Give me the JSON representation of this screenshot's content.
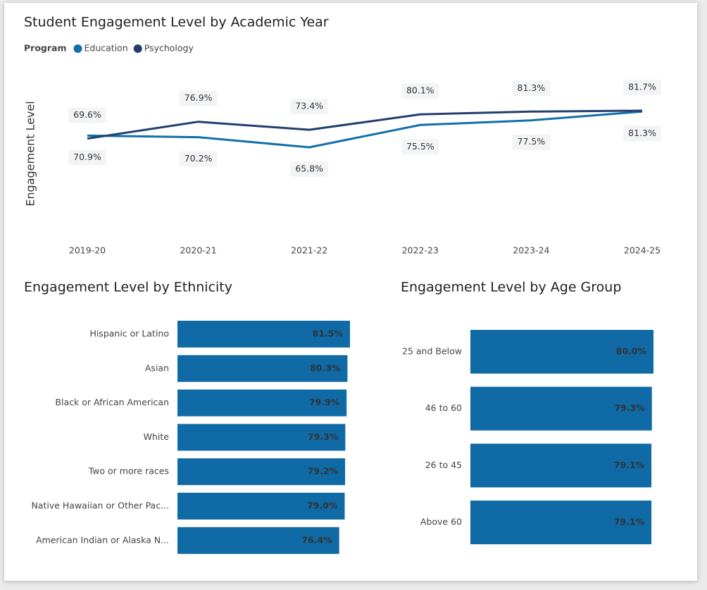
{
  "chart_data": [
    {
      "type": "line",
      "title": "Student Engagement Level by Academic Year",
      "legend_title": "Program",
      "y_label": "Engagement Level",
      "categories": [
        "2019-20",
        "2020-21",
        "2021-22",
        "2022-23",
        "2023-24",
        "2024-25"
      ],
      "series": [
        {
          "name": "Education",
          "color": "#1170aa",
          "values": [
            70.9,
            70.2,
            65.8,
            75.5,
            77.5,
            81.3
          ],
          "value_labels": [
            "70.9%",
            "70.2%",
            "65.8%",
            "75.5%",
            "77.5%",
            "81.3%"
          ]
        },
        {
          "name": "Psychology",
          "color": "#213f6e",
          "values": [
            69.6,
            76.9,
            73.4,
            80.1,
            81.3,
            81.7
          ],
          "value_labels": [
            "69.6%",
            "76.9%",
            "73.4%",
            "80.1%",
            "81.3%",
            "81.7%"
          ]
        }
      ]
    },
    {
      "type": "hbar",
      "title": "Engagement Level by Ethnicity",
      "color": "#0f6aa6",
      "categories": [
        "Hispanic or Latino",
        "Asian",
        "Black or African American",
        "White",
        "Two or more races",
        "Native Hawaiian or Other Pac...",
        "American Indian or Alaska N..."
      ],
      "values": [
        81.5,
        80.3,
        79.9,
        79.3,
        79.2,
        79.0,
        76.4
      ],
      "value_labels": [
        "81.5%",
        "80.3%",
        "79.9%",
        "79.3%",
        "79.2%",
        "79.0%",
        "76.4%"
      ],
      "xlim": [
        0,
        81.5
      ]
    },
    {
      "type": "hbar",
      "title": "Engagement Level by Age Group",
      "color": "#0f6aa6",
      "categories": [
        "25 and Below",
        "46 to 60",
        "26 to 45",
        "Above 60"
      ],
      "values": [
        80.0,
        79.3,
        79.1,
        79.1
      ],
      "value_labels": [
        "80.0%",
        "79.3%",
        "79.1%",
        "79.1%"
      ],
      "xlim": [
        0,
        80
      ]
    }
  ]
}
